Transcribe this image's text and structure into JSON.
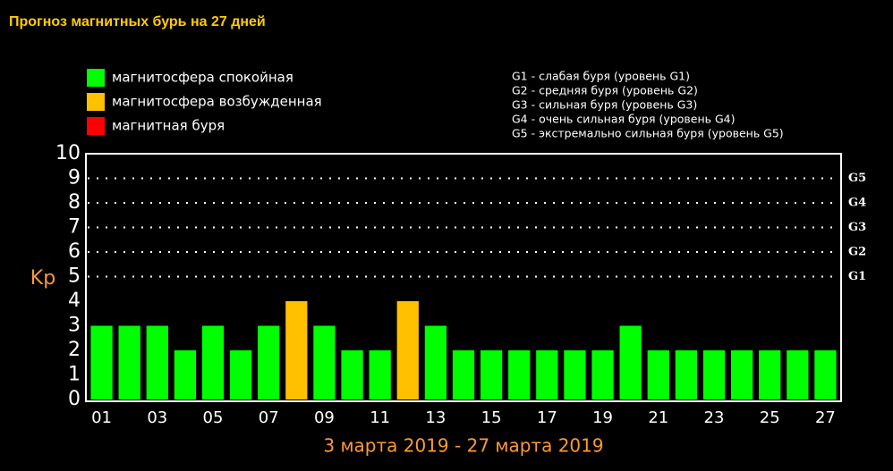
{
  "chart_data": {
    "type": "bar",
    "title": "Прогноз магнитных бурь на 27 дней",
    "ylabel": "Kp",
    "xlabel": "3 марта 2019 - 27 марта 2019",
    "legend": [
      {
        "label": "магнитосфера спокойная",
        "color": "#00ff00"
      },
      {
        "label": "магнитосфера возбужденная",
        "color": "#ffc000"
      },
      {
        "label": "магнитная буря",
        "color": "#ff0000"
      }
    ],
    "storm_levels": [
      "G1 - слабая буря (уровень G1)",
      "G2 - средняя буря (уровень G2)",
      "G3 - сильная буря (уровень G3)",
      "G4 - очень сильная буря (уровень G4)",
      "G5 - экстремально сильная буря (уровень G5)"
    ],
    "categories": [
      "01",
      null,
      "03",
      null,
      "05",
      null,
      "07",
      null,
      "09",
      null,
      "11",
      null,
      "13",
      null,
      "15",
      null,
      "17",
      null,
      "19",
      null,
      "21",
      null,
      "23",
      null,
      "25",
      null,
      "27"
    ],
    "values": [
      3,
      3,
      3,
      2,
      3,
      2,
      3,
      4,
      3,
      2,
      2,
      4,
      3,
      2,
      2,
      2,
      2,
      2,
      2,
      3,
      2,
      2,
      2,
      2,
      2,
      2,
      2
    ],
    "colors": [
      "#00ff00",
      "#00ff00",
      "#00ff00",
      "#00ff00",
      "#00ff00",
      "#00ff00",
      "#00ff00",
      "#ffc000",
      "#00ff00",
      "#00ff00",
      "#00ff00",
      "#ffc000",
      "#00ff00",
      "#00ff00",
      "#00ff00",
      "#00ff00",
      "#00ff00",
      "#00ff00",
      "#00ff00",
      "#00ff00",
      "#00ff00",
      "#00ff00",
      "#00ff00",
      "#00ff00",
      "#00ff00",
      "#00ff00",
      "#00ff00"
    ],
    "ylim": [
      0,
      10
    ],
    "yticks": [
      0,
      1,
      2,
      3,
      4,
      5,
      6,
      7,
      8,
      9,
      10
    ],
    "y2lim": [
      0,
      10
    ],
    "y2ticks": [
      {
        "value": 5,
        "label": "G1"
      },
      {
        "value": 6,
        "label": "G2"
      },
      {
        "value": 7,
        "label": "G3"
      },
      {
        "value": 8,
        "label": "G4"
      },
      {
        "value": 9,
        "label": "G5"
      }
    ],
    "grid": true
  }
}
